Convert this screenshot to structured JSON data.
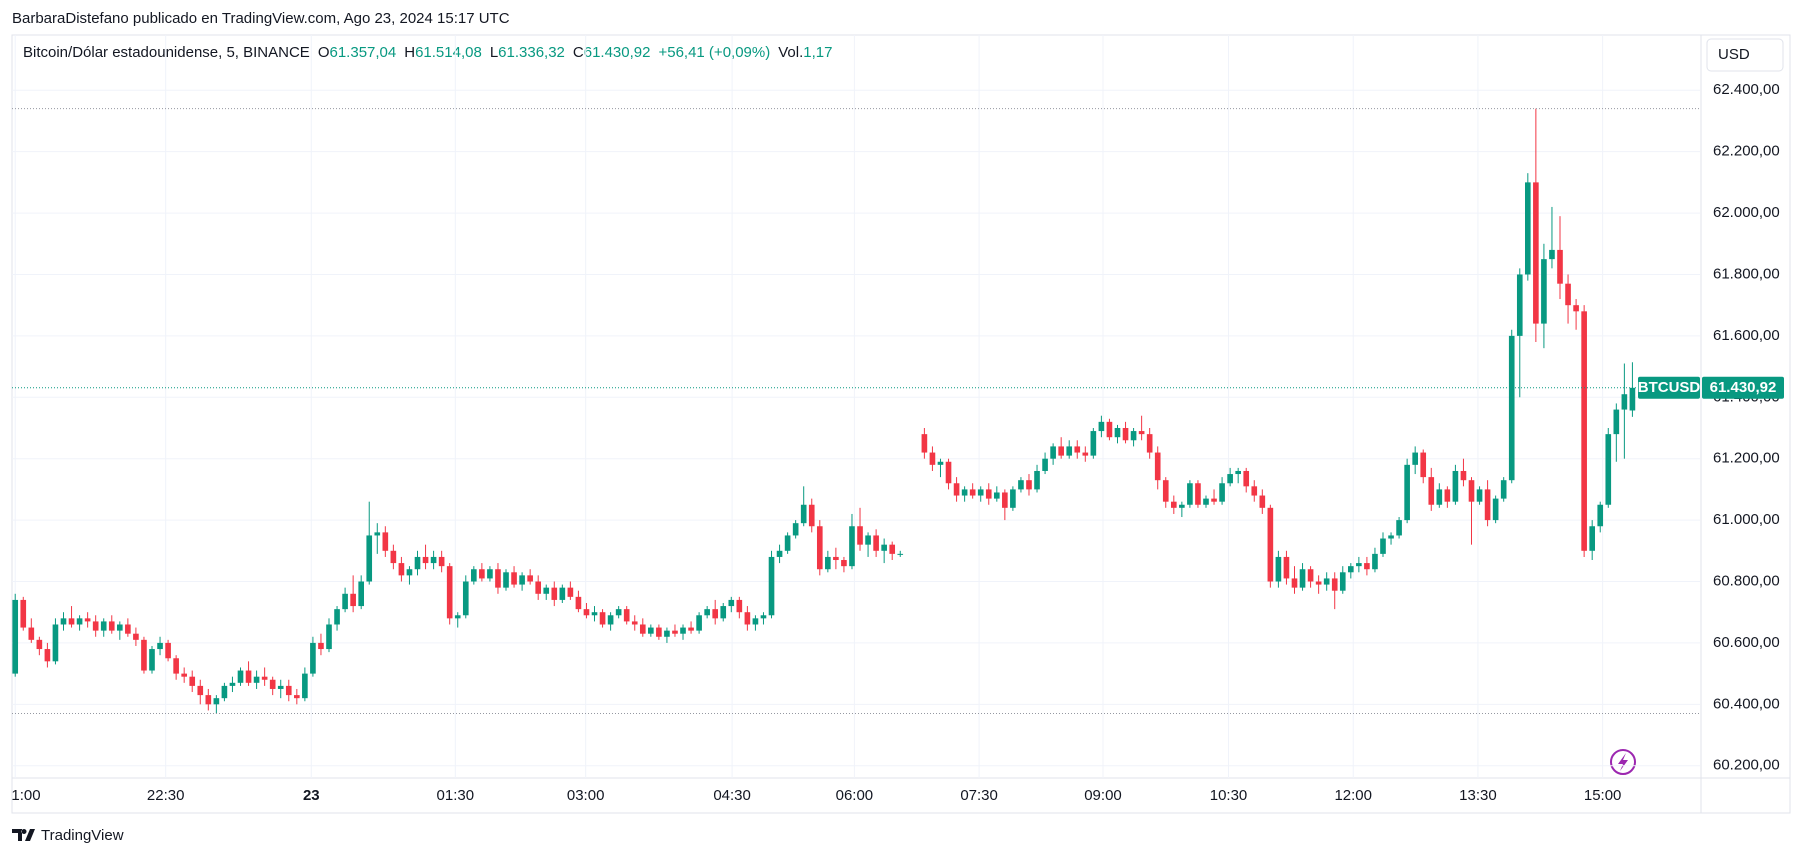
{
  "header": {
    "publisher": "BarbaraDistefano publicado en TradingView.com, Ago 23, 2024 15:17 UTC",
    "logo": "TradingView",
    "currency_button": "USD"
  },
  "legend": {
    "symbol": "Bitcoin/Dólar estadounidense, 5, BINANCE",
    "o_key": "O",
    "o": "61.357,04",
    "h_key": "H",
    "h": "61.514,08",
    "l_key": "L",
    "l": "61.336,32",
    "c_key": "C",
    "c": "61.430,92",
    "change": "+56,41 (+0,09%)",
    "vol_key": "Vol.",
    "vol": "1,17"
  },
  "chart_data": {
    "type": "candlestick",
    "up_color": "#089981",
    "down_color": "#f23645",
    "grid": true,
    "price_label": {
      "symbol": "BTCUSD",
      "value_label": "61.430,92"
    },
    "xlim": [
      -0.4,
      209.4
    ],
    "xticks": [
      {
        "value": 0,
        "label": "1:00"
      },
      {
        "value": 18.7,
        "label": "22:30"
      },
      {
        "value": 36.8,
        "label": "23",
        "bold": true
      },
      {
        "value": 54.7,
        "label": "01:30"
      },
      {
        "value": 70.9,
        "label": "03:00"
      },
      {
        "value": 89.1,
        "label": "04:30"
      },
      {
        "value": 104.3,
        "label": "06:00"
      },
      {
        "value": 119.8,
        "label": "07:30"
      },
      {
        "value": 135.2,
        "label": "09:00"
      },
      {
        "value": 150.8,
        "label": "10:30"
      },
      {
        "value": 166.3,
        "label": "12:00"
      },
      {
        "value": 181.8,
        "label": "13:30"
      },
      {
        "value": 197.3,
        "label": "15:00"
      }
    ],
    "ylim": [
      60160,
      62580
    ],
    "yticks": [
      {
        "value": 60200,
        "label": "60.200,00"
      },
      {
        "value": 60400,
        "label": "60.400,00"
      },
      {
        "value": 60600,
        "label": "60.600,00"
      },
      {
        "value": 60800,
        "label": "60.800,00"
      },
      {
        "value": 61000,
        "label": "61.000,00"
      },
      {
        "value": 61200,
        "label": "61.200,00"
      },
      {
        "value": 61400,
        "label": "61.400,00"
      },
      {
        "value": 61600,
        "label": "61.600,00"
      },
      {
        "value": 61800,
        "label": "61.800,00"
      },
      {
        "value": 62000,
        "label": "62.000,00"
      },
      {
        "value": 62200,
        "label": "62.200,00"
      },
      {
        "value": 62400,
        "label": "62.400,00"
      }
    ],
    "candles": [
      [
        60500,
        60760,
        60490,
        60740
      ],
      [
        60740,
        60750,
        60640,
        60650
      ],
      [
        60650,
        60680,
        60600,
        60610
      ],
      [
        60610,
        60620,
        60560,
        60580
      ],
      [
        60580,
        60600,
        60520,
        60540
      ],
      [
        60540,
        60680,
        60530,
        60660
      ],
      [
        60660,
        60700,
        60640,
        60680
      ],
      [
        60680,
        60720,
        60650,
        60660
      ],
      [
        60660,
        60690,
        60640,
        60680
      ],
      [
        60680,
        60700,
        60650,
        60670
      ],
      [
        60670,
        60690,
        60620,
        60640
      ],
      [
        60640,
        60680,
        60620,
        60670
      ],
      [
        60670,
        60690,
        60630,
        60640
      ],
      [
        60640,
        60670,
        60610,
        60660
      ],
      [
        60660,
        60680,
        60620,
        60630
      ],
      [
        60630,
        60650,
        60590,
        60610
      ],
      [
        60610,
        60620,
        60500,
        60510
      ],
      [
        60510,
        60590,
        60500,
        60580
      ],
      [
        60580,
        60620,
        60560,
        60600
      ],
      [
        60600,
        60610,
        60540,
        60550
      ],
      [
        60550,
        60560,
        60480,
        60500
      ],
      [
        60500,
        60520,
        60470,
        60490
      ],
      [
        60490,
        60510,
        60440,
        60460
      ],
      [
        60460,
        60480,
        60400,
        60430
      ],
      [
        60430,
        60450,
        60380,
        60400
      ],
      [
        60400,
        60430,
        60370,
        60420
      ],
      [
        60420,
        60470,
        60410,
        60460
      ],
      [
        60460,
        60490,
        60440,
        60470
      ],
      [
        60470,
        60520,
        60460,
        60510
      ],
      [
        60510,
        60540,
        60460,
        60470
      ],
      [
        60470,
        60510,
        60450,
        60490
      ],
      [
        60490,
        60520,
        60460,
        60480
      ],
      [
        60480,
        60490,
        60430,
        60450
      ],
      [
        60450,
        60480,
        60420,
        60460
      ],
      [
        60460,
        60480,
        60410,
        60430
      ],
      [
        60430,
        60450,
        60400,
        60420
      ],
      [
        60420,
        60520,
        60410,
        60500
      ],
      [
        60500,
        60620,
        60490,
        60600
      ],
      [
        60600,
        60630,
        60560,
        60580
      ],
      [
        60580,
        60680,
        60570,
        60660
      ],
      [
        60660,
        60720,
        60640,
        60710
      ],
      [
        60710,
        60780,
        60700,
        60760
      ],
      [
        60760,
        60820,
        60700,
        60720
      ],
      [
        60720,
        60820,
        60710,
        60800
      ],
      [
        60800,
        61060,
        60790,
        60950
      ],
      [
        60950,
        60990,
        60890,
        60960
      ],
      [
        60960,
        60980,
        60880,
        60900
      ],
      [
        60900,
        60920,
        60840,
        60860
      ],
      [
        60860,
        60880,
        60800,
        60820
      ],
      [
        60820,
        60850,
        60790,
        60840
      ],
      [
        60840,
        60900,
        60820,
        60880
      ],
      [
        60880,
        60920,
        60840,
        60860
      ],
      [
        60860,
        60900,
        60840,
        60880
      ],
      [
        60880,
        60900,
        60830,
        60850
      ],
      [
        60850,
        60860,
        60660,
        60680
      ],
      [
        60680,
        60700,
        60650,
        60690
      ],
      [
        60690,
        60820,
        60680,
        60800
      ],
      [
        60800,
        60850,
        60790,
        60840
      ],
      [
        60840,
        60860,
        60800,
        60810
      ],
      [
        60810,
        60850,
        60800,
        60840
      ],
      [
        60840,
        60860,
        60760,
        60780
      ],
      [
        60780,
        60840,
        60770,
        60830
      ],
      [
        60830,
        60850,
        60780,
        60790
      ],
      [
        60790,
        60830,
        60770,
        60820
      ],
      [
        60820,
        60840,
        60790,
        60800
      ],
      [
        60800,
        60820,
        60740,
        60760
      ],
      [
        60760,
        60790,
        60740,
        60780
      ],
      [
        60780,
        60800,
        60720,
        60740
      ],
      [
        60740,
        60790,
        60730,
        60780
      ],
      [
        60780,
        60800,
        60740,
        60750
      ],
      [
        60750,
        60770,
        60700,
        60710
      ],
      [
        60710,
        60730,
        60680,
        60690
      ],
      [
        60690,
        60720,
        60670,
        60700
      ],
      [
        60700,
        60710,
        60650,
        60660
      ],
      [
        60660,
        60700,
        60640,
        60690
      ],
      [
        60690,
        60720,
        60680,
        60710
      ],
      [
        60710,
        60720,
        60660,
        60670
      ],
      [
        60670,
        60690,
        60640,
        60660
      ],
      [
        60660,
        60680,
        60620,
        60630
      ],
      [
        60630,
        60660,
        60620,
        60650
      ],
      [
        60650,
        60660,
        60610,
        60620
      ],
      [
        60620,
        60650,
        60600,
        60640
      ],
      [
        60640,
        60660,
        60620,
        60630
      ],
      [
        60630,
        60660,
        60610,
        60650
      ],
      [
        60650,
        60670,
        60630,
        60640
      ],
      [
        60640,
        60700,
        60630,
        60690
      ],
      [
        60690,
        60720,
        60680,
        60710
      ],
      [
        60710,
        60740,
        60660,
        60680
      ],
      [
        60680,
        60730,
        60670,
        60720
      ],
      [
        60720,
        60750,
        60700,
        60740
      ],
      [
        60740,
        60750,
        60680,
        60700
      ],
      [
        60700,
        60720,
        60640,
        60660
      ],
      [
        60660,
        60690,
        60640,
        60680
      ],
      [
        60680,
        60700,
        60660,
        60690
      ],
      [
        60690,
        60900,
        60680,
        60880
      ],
      [
        60880,
        60920,
        60860,
        60900
      ],
      [
        60900,
        60960,
        60890,
        60950
      ],
      [
        60950,
        61000,
        60940,
        60990
      ],
      [
        60990,
        61110,
        60980,
        61050
      ],
      [
        61050,
        61070,
        60960,
        60980
      ],
      [
        60980,
        61000,
        60820,
        60840
      ],
      [
        60840,
        60900,
        60830,
        60880
      ],
      [
        60880,
        60910,
        60840,
        60870
      ],
      [
        60870,
        60880,
        60830,
        60850
      ],
      [
        60850,
        61020,
        60840,
        60980
      ],
      [
        60980,
        61040,
        60900,
        60920
      ],
      [
        60920,
        60960,
        60880,
        60950
      ],
      [
        60950,
        60970,
        60880,
        60900
      ],
      [
        60900,
        60940,
        60860,
        60920
      ],
      [
        60920,
        60930,
        60870,
        60890
      ],
      [
        60890,
        60900,
        60880,
        60890
      ],
      null,
      null,
      [
        61280,
        61300,
        61200,
        61220
      ],
      [
        61220,
        61240,
        61160,
        61180
      ],
      [
        61180,
        61200,
        61140,
        61190
      ],
      [
        61190,
        61200,
        61100,
        61120
      ],
      [
        61120,
        61140,
        61060,
        61080
      ],
      [
        61080,
        61110,
        61060,
        61100
      ],
      [
        61100,
        61120,
        61070,
        61080
      ],
      [
        61080,
        61110,
        61060,
        61100
      ],
      [
        61100,
        61120,
        61050,
        61070
      ],
      [
        61070,
        61110,
        61060,
        61090
      ],
      [
        61090,
        61100,
        61000,
        61040
      ],
      [
        61040,
        61110,
        61030,
        61100
      ],
      [
        61100,
        61140,
        61090,
        61130
      ],
      [
        61130,
        61150,
        61080,
        61100
      ],
      [
        61100,
        61180,
        61090,
        61160
      ],
      [
        61160,
        61220,
        61150,
        61200
      ],
      [
        61200,
        61250,
        61180,
        61240
      ],
      [
        61240,
        61270,
        61200,
        61210
      ],
      [
        61210,
        61260,
        61200,
        61240
      ],
      [
        61240,
        61260,
        61200,
        61220
      ],
      [
        61220,
        61240,
        61190,
        61210
      ],
      [
        61210,
        61300,
        61200,
        61290
      ],
      [
        61290,
        61340,
        61270,
        61320
      ],
      [
        61320,
        61330,
        61260,
        61270
      ],
      [
        61270,
        61310,
        61250,
        61300
      ],
      [
        61300,
        61320,
        61250,
        61260
      ],
      [
        61260,
        61300,
        61240,
        61290
      ],
      [
        61290,
        61340,
        61260,
        61280
      ],
      [
        61280,
        61300,
        61200,
        61220
      ],
      [
        61220,
        61240,
        61100,
        61130
      ],
      [
        61130,
        61140,
        61040,
        61060
      ],
      [
        61060,
        61080,
        61020,
        61040
      ],
      [
        61040,
        61060,
        61010,
        61050
      ],
      [
        61050,
        61130,
        61040,
        61120
      ],
      [
        61120,
        61130,
        61040,
        61050
      ],
      [
        61050,
        61080,
        61040,
        61070
      ],
      [
        61070,
        61100,
        61050,
        61060
      ],
      [
        61060,
        61140,
        61050,
        61120
      ],
      [
        61120,
        61170,
        61110,
        61150
      ],
      [
        61150,
        61170,
        61120,
        61160
      ],
      [
        61160,
        61170,
        61090,
        61110
      ],
      [
        61110,
        61130,
        61060,
        61080
      ],
      [
        61080,
        61100,
        61020,
        61040
      ],
      [
        61040,
        61050,
        60780,
        60800
      ],
      [
        60800,
        60900,
        60780,
        60880
      ],
      [
        60880,
        60900,
        60790,
        60810
      ],
      [
        60810,
        60850,
        60760,
        60780
      ],
      [
        60780,
        60860,
        60770,
        60840
      ],
      [
        60840,
        60850,
        60780,
        60800
      ],
      [
        60800,
        60820,
        60760,
        60790
      ],
      [
        60790,
        60830,
        60770,
        60810
      ],
      [
        60810,
        60830,
        60710,
        60770
      ],
      [
        60770,
        60850,
        60760,
        60830
      ],
      [
        60830,
        60860,
        60810,
        60850
      ],
      [
        60850,
        60880,
        60830,
        60860
      ],
      [
        60860,
        60880,
        60820,
        60840
      ],
      [
        60840,
        60910,
        60830,
        60890
      ],
      [
        60890,
        60960,
        60880,
        60940
      ],
      [
        60940,
        60960,
        60920,
        60950
      ],
      [
        60950,
        61010,
        60940,
        61000
      ],
      [
        61000,
        61200,
        60990,
        61180
      ],
      [
        61180,
        61240,
        61150,
        61220
      ],
      [
        61220,
        61230,
        61120,
        61140
      ],
      [
        61140,
        61170,
        61030,
        61050
      ],
      [
        61050,
        61120,
        61040,
        61100
      ],
      [
        61100,
        61110,
        61040,
        61060
      ],
      [
        61060,
        61180,
        61050,
        61160
      ],
      [
        61160,
        61200,
        61110,
        61130
      ],
      [
        61130,
        61140,
        60920,
        61060
      ],
      [
        61060,
        61110,
        61050,
        61100
      ],
      [
        61100,
        61130,
        60980,
        61000
      ],
      [
        61000,
        61080,
        60990,
        61070
      ],
      [
        61070,
        61140,
        61060,
        61130
      ],
      [
        61130,
        61620,
        61120,
        61600
      ],
      [
        61600,
        61820,
        61400,
        61800
      ],
      [
        61800,
        62130,
        61780,
        62100
      ],
      [
        62100,
        62340,
        61580,
        61640
      ],
      [
        61640,
        61900,
        61560,
        61850
      ],
      [
        61850,
        62020,
        61820,
        61880
      ],
      [
        61880,
        61990,
        61720,
        61770
      ],
      [
        61770,
        61800,
        61640,
        61700
      ],
      [
        61700,
        61720,
        61620,
        61680
      ],
      [
        61680,
        61700,
        60880,
        60900
      ],
      [
        60900,
        61000,
        60870,
        60980
      ],
      [
        60980,
        61060,
        60960,
        61050
      ],
      [
        61050,
        61300,
        61040,
        61280
      ],
      [
        61280,
        61380,
        61190,
        61360
      ],
      [
        61360,
        61510,
        61200,
        61410
      ],
      [
        61357.04,
        61514.08,
        61336.32,
        61430.92
      ]
    ]
  }
}
